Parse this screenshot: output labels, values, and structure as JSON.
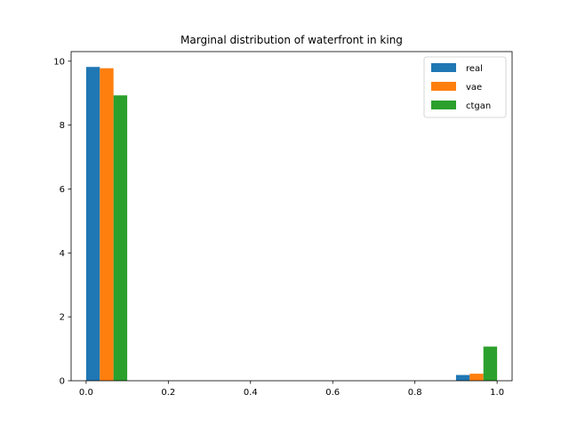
{
  "chart_data": {
    "type": "bar",
    "title": "Marginal distribution of waterfront in king",
    "xlabel": "",
    "ylabel": "",
    "xlim": [
      -0.0365,
      1.0365
    ],
    "ylim": [
      0,
      10.3
    ],
    "xticks": [
      0.0,
      0.2,
      0.4,
      0.6,
      0.8,
      1.0
    ],
    "xtick_labels": [
      "0.0",
      "0.2",
      "0.4",
      "0.6",
      "0.8",
      "1.0"
    ],
    "yticks": [
      0,
      2,
      4,
      6,
      8,
      10
    ],
    "ytick_labels": [
      "0",
      "2",
      "4",
      "6",
      "8",
      "10"
    ],
    "bin_width": 0.1,
    "bins": [
      [
        0.0,
        0.1
      ],
      [
        0.9,
        1.0
      ]
    ],
    "grid": false,
    "legend_position": "top-right",
    "series": [
      {
        "name": "real",
        "color": "#1f77b4",
        "values": [
          9.82,
          0.18
        ]
      },
      {
        "name": "vae",
        "color": "#ff7f0e",
        "values": [
          9.78,
          0.22
        ]
      },
      {
        "name": "ctgan",
        "color": "#2ca02c",
        "values": [
          8.93,
          1.07
        ]
      }
    ]
  }
}
